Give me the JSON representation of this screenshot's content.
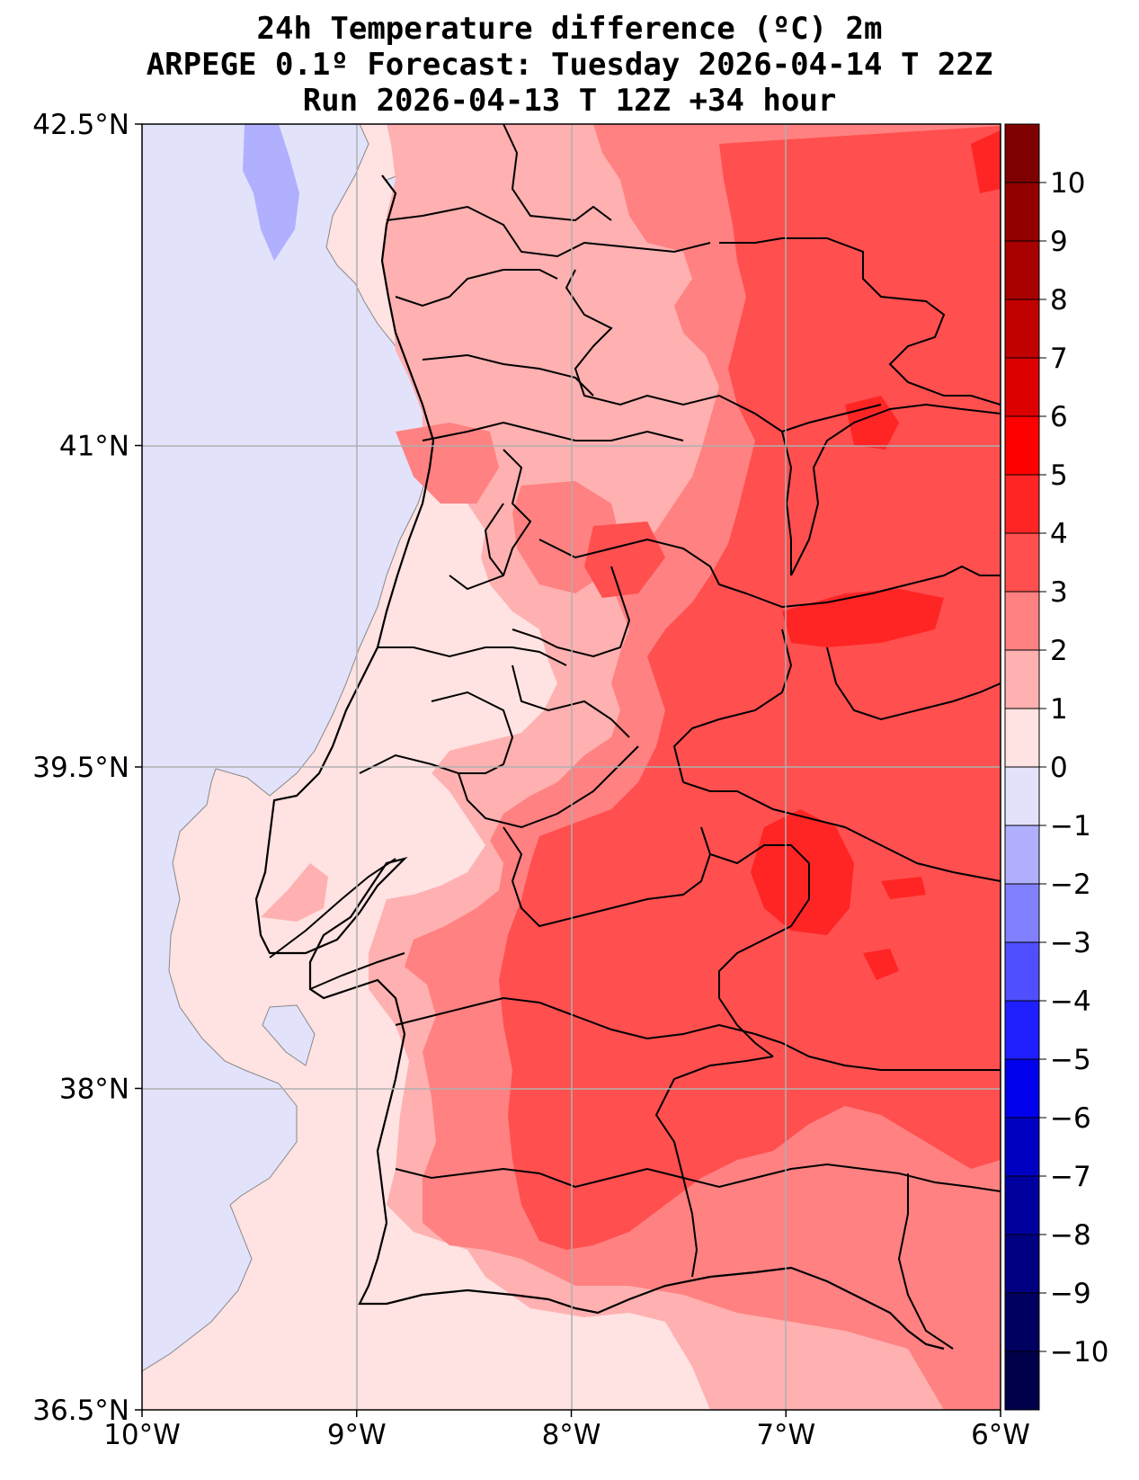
{
  "header": {
    "title_line1": "24h Temperature difference (ºC) 2m",
    "title_line2": "ARPEGE 0.1º Forecast: Tuesday 2026-04-14 T 22Z",
    "title_line3": "Run 2026-04-13 T 12Z +34 hour"
  },
  "map": {
    "lat_range": [
      36.5,
      42.5
    ],
    "lon_range": [
      -10,
      -6
    ],
    "lat_labels": [
      "42.5°N",
      "41°N",
      "39.5°N",
      "38°N",
      "36.5°N"
    ],
    "lat_values": [
      42.5,
      41,
      39.5,
      38,
      36.5
    ],
    "lon_labels": [
      "10°W",
      "9°W",
      "8°W",
      "7°W",
      "6°W"
    ],
    "lon_values": [
      -10,
      -9,
      -8,
      -7,
      -6
    ],
    "grid": true,
    "ocean_color": "#e2e2fb",
    "land_color": "#ffe2e2",
    "border_color": "#000000"
  },
  "colorbar": {
    "ticks": [
      "10",
      "9",
      "8",
      "7",
      "6",
      "5",
      "4",
      "3",
      "2",
      "1",
      "0",
      "−1",
      "−2",
      "−3",
      "−4",
      "−5",
      "−6",
      "−7",
      "−8",
      "−9",
      "−10"
    ],
    "levels_top_to_bottom": [
      {
        "range": "10 to 11",
        "color": "#7e0000"
      },
      {
        "range": "9 to 10",
        "color": "#930000"
      },
      {
        "range": "8 to 9",
        "color": "#a90000"
      },
      {
        "range": "7 to 8",
        "color": "#c10000"
      },
      {
        "range": "6 to 7",
        "color": "#dc0000"
      },
      {
        "range": "5 to 6",
        "color": "#ff0000"
      },
      {
        "range": "4 to 5",
        "color": "#ff2525"
      },
      {
        "range": "3 to 4",
        "color": "#ff4f4f"
      },
      {
        "range": "2 to 3",
        "color": "#ff8181"
      },
      {
        "range": "1 to 2",
        "color": "#ffb0b0"
      },
      {
        "range": "0 to 1",
        "color": "#ffe2e2"
      },
      {
        "range": "-1 to 0",
        "color": "#e2e2fb"
      },
      {
        "range": "-2 to -1",
        "color": "#b0b0ff"
      },
      {
        "range": "-3 to -2",
        "color": "#8181ff"
      },
      {
        "range": "-4 to -3",
        "color": "#4f4fff"
      },
      {
        "range": "-5 to -4",
        "color": "#1e1eff"
      },
      {
        "range": "-6 to -5",
        "color": "#0000ec"
      },
      {
        "range": "-7 to -6",
        "color": "#0000c3"
      },
      {
        "range": "-8 to -7",
        "color": "#00009f"
      },
      {
        "range": "-9 to -8",
        "color": "#000080"
      },
      {
        "range": "-10 to -9",
        "color": "#000060"
      },
      {
        "range": "-11 to -10",
        "color": "#00004a"
      }
    ]
  }
}
